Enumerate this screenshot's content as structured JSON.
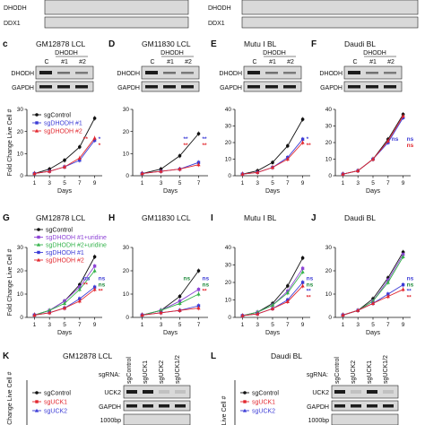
{
  "top_blots": {
    "left": {
      "labels": [
        "DHODH",
        "DDX1"
      ]
    },
    "right": {
      "labels": [
        "DHODH",
        "DDX1"
      ]
    }
  },
  "colors": {
    "control": "#111111",
    "dhodh1": "#3b3bd6",
    "dhodh2": "#e2262d",
    "dhodh1_uridine": "#8e44d6",
    "dhodh2_uridine": "#33b34a",
    "ns": "#1d8a3a"
  },
  "row1": {
    "panels": [
      {
        "letter": "c",
        "title": "GM12878 LCL",
        "blot_header": "DHODH",
        "lanes": [
          "C",
          "#1",
          "#2"
        ],
        "blot_labels": [
          "DHODH",
          "GAPDH"
        ]
      },
      {
        "letter": "D",
        "title": "GM11830 LCL",
        "blot_header": "DHODH",
        "lanes": [
          "C",
          "#1",
          "#2"
        ],
        "blot_labels": [
          "DHODH",
          "GAPDH"
        ]
      },
      {
        "letter": "E",
        "title": "Mutu I BL",
        "blot_header": "DHODH",
        "lanes": [
          "C",
          "#1",
          "#2"
        ],
        "blot_labels": [
          "DHODH",
          "GAPDH"
        ]
      },
      {
        "letter": "F",
        "title": "Daudi BL",
        "blot_header": "DHODH",
        "lanes": [
          "C",
          "#1",
          "#2"
        ],
        "blot_labels": [
          "DHODH",
          "GAPDH"
        ]
      }
    ],
    "legend": [
      "sgControl",
      "sgDHODH #1",
      "sgDHODH #2"
    ]
  },
  "row2": {
    "panels": [
      {
        "letter": "G",
        "title": "GM12878 LCL"
      },
      {
        "letter": "H",
        "title": "GM11830 LCL"
      },
      {
        "letter": "I",
        "title": "Mutu I BL"
      },
      {
        "letter": "J",
        "title": "Daudi BL"
      }
    ],
    "legend": [
      "sgControl",
      "sgDHODH #1+uridine",
      "sgDHODH #2+uridine",
      "sgDHODH #1",
      "sgDHODH #2"
    ]
  },
  "row3": {
    "panels": [
      {
        "letter": "K",
        "title": "GM12878 LCL",
        "sgrna_label": "sgRNA:",
        "lanes": [
          "sgControl",
          "sgUCK1",
          "sgUCK2",
          "sgUCK1/2"
        ],
        "blot_labels": [
          "UCK2",
          "GAPDH"
        ],
        "size_label": "1000bp"
      },
      {
        "letter": "L",
        "title": "Daudi BL",
        "sgrna_label": "sgRNA:",
        "lanes": [
          "sgControl",
          "sgUCK2",
          "sgUCK1",
          "sgUCK1/2"
        ],
        "blot_labels": [
          "UCK2",
          "GAPDH"
        ],
        "size_label": "1000bp"
      }
    ],
    "legend": [
      "sgControl",
      "sgUCK1",
      "sgUCK2"
    ]
  },
  "chart_data": [
    {
      "type": "line",
      "panel": "c",
      "xlabel": "Days",
      "ylabel": "Fold Change Live Cell #",
      "x": [
        1,
        3,
        5,
        7,
        9
      ],
      "ylim": [
        0,
        30
      ],
      "yticks": [
        0,
        10,
        20,
        30
      ],
      "series": [
        {
          "name": "sgControl",
          "values": [
            1,
            3,
            7,
            13,
            26
          ]
        },
        {
          "name": "sgDHODH #1",
          "values": [
            1,
            2,
            4,
            7,
            16
          ]
        },
        {
          "name": "sgDHODH #2",
          "values": [
            1,
            2,
            4,
            8,
            17
          ]
        }
      ],
      "annotations": [
        {
          "x": 9,
          "text": "*",
          "color": "#3b3bd6"
        },
        {
          "x": 7,
          "text": "**",
          "color": "#e2262d"
        },
        {
          "x": 9,
          "text": "*",
          "color": "#e2262d"
        }
      ]
    },
    {
      "type": "line",
      "panel": "D",
      "xlabel": "Days",
      "ylabel": "",
      "x": [
        1,
        3,
        5,
        7
      ],
      "ylim": [
        0,
        30
      ],
      "yticks": [
        0,
        10,
        20,
        30
      ],
      "series": [
        {
          "name": "sgControl",
          "values": [
            1,
            3,
            9,
            19
          ]
        },
        {
          "name": "sgDHODH #1",
          "values": [
            1,
            2,
            3,
            6
          ]
        },
        {
          "name": "sgDHODH #2",
          "values": [
            1,
            2,
            3,
            5
          ]
        }
      ],
      "annotations": [
        {
          "x": 5,
          "text": "**",
          "color": "#3b3bd6"
        },
        {
          "x": 7,
          "text": "**",
          "color": "#3b3bd6"
        },
        {
          "x": 5,
          "text": "**",
          "color": "#e2262d"
        },
        {
          "x": 7,
          "text": "**",
          "color": "#e2262d"
        }
      ]
    },
    {
      "type": "line",
      "panel": "E",
      "xlabel": "Days",
      "ylabel": "",
      "x": [
        1,
        3,
        5,
        7,
        9
      ],
      "ylim": [
        0,
        40
      ],
      "yticks": [
        0,
        10,
        20,
        30,
        40
      ],
      "series": [
        {
          "name": "sgControl",
          "values": [
            1,
            3,
            8,
            18,
            34
          ]
        },
        {
          "name": "sgDHODH #1",
          "values": [
            1,
            2,
            5,
            11,
            22
          ]
        },
        {
          "name": "sgDHODH #2",
          "values": [
            1,
            2,
            5,
            10,
            20
          ]
        }
      ],
      "annotations": [
        {
          "x": 9,
          "text": "*",
          "color": "#3b3bd6"
        },
        {
          "x": 9,
          "text": "**",
          "color": "#e2262d"
        }
      ]
    },
    {
      "type": "line",
      "panel": "F",
      "xlabel": "Days",
      "ylabel": "",
      "x": [
        1,
        3,
        5,
        7,
        9
      ],
      "ylim": [
        0,
        40
      ],
      "yticks": [
        0,
        10,
        20,
        30,
        40
      ],
      "series": [
        {
          "name": "sgControl",
          "values": [
            1,
            3,
            10,
            22,
            37
          ]
        },
        {
          "name": "sgDHODH #1",
          "values": [
            1,
            3,
            10,
            20,
            35
          ]
        },
        {
          "name": "sgDHODH #2",
          "values": [
            1,
            3,
            10,
            21,
            36
          ]
        }
      ],
      "annotations": [
        {
          "x": 7,
          "text": "ns",
          "color": "#3b3bd6"
        },
        {
          "x": 9,
          "text": "ns",
          "color": "#3b3bd6"
        },
        {
          "x": 9,
          "text": "ns",
          "color": "#e2262d"
        }
      ]
    },
    {
      "type": "line",
      "panel": "G",
      "xlabel": "Days",
      "ylabel": "Fold Change Live Cell #",
      "x": [
        1,
        3,
        5,
        7,
        9
      ],
      "ylim": [
        0,
        30
      ],
      "yticks": [
        0,
        10,
        20,
        30
      ],
      "series": [
        {
          "name": "sgControl",
          "values": [
            1,
            3,
            7,
            14,
            26
          ]
        },
        {
          "name": "sgDHODH #1+uridine",
          "values": [
            1,
            3,
            7,
            13,
            22
          ]
        },
        {
          "name": "sgDHODH #2+uridine",
          "values": [
            1,
            3,
            6,
            12,
            20
          ]
        },
        {
          "name": "sgDHODH #1",
          "values": [
            1,
            2,
            4,
            8,
            13
          ]
        },
        {
          "name": "sgDHODH #2",
          "values": [
            1,
            2,
            4,
            7,
            12
          ]
        }
      ],
      "annotations": [
        {
          "x": 7,
          "text": "ns",
          "color": "#3b3bd6"
        },
        {
          "x": 9,
          "text": "ns",
          "color": "#3b3bd6"
        },
        {
          "x": 9,
          "text": "ns",
          "color": "#1d8a3a"
        },
        {
          "x": 7,
          "text": "**",
          "color": "#e2262d"
        },
        {
          "x": 9,
          "text": "**",
          "color": "#e2262d"
        }
      ]
    },
    {
      "type": "line",
      "panel": "H",
      "xlabel": "Days",
      "ylabel": "",
      "x": [
        1,
        3,
        5,
        7
      ],
      "ylim": [
        0,
        30
      ],
      "yticks": [
        0,
        10,
        20,
        30
      ],
      "series": [
        {
          "name": "sgControl",
          "values": [
            1,
            3,
            9,
            20
          ]
        },
        {
          "name": "sgDHODH #1+uridine",
          "values": [
            1,
            3,
            7,
            12
          ]
        },
        {
          "name": "sgDHODH #2+uridine",
          "values": [
            1,
            3,
            6,
            10
          ]
        },
        {
          "name": "sgDHODH #1",
          "values": [
            1,
            2,
            3,
            5
          ]
        },
        {
          "name": "sgDHODH #2",
          "values": [
            1,
            2,
            3,
            4
          ]
        }
      ],
      "annotations": [
        {
          "x": 5,
          "text": "ns",
          "color": "#1d8a3a"
        },
        {
          "x": 7,
          "text": "ns",
          "color": "#3b3bd6"
        },
        {
          "x": 7,
          "text": "ns",
          "color": "#1d8a3a"
        },
        {
          "x": 7,
          "text": "**",
          "color": "#e2262d"
        }
      ]
    },
    {
      "type": "line",
      "panel": "I",
      "xlabel": "Days",
      "ylabel": "",
      "x": [
        1,
        3,
        5,
        7,
        9
      ],
      "ylim": [
        0,
        40
      ],
      "yticks": [
        0,
        10,
        20,
        30,
        40
      ],
      "series": [
        {
          "name": "sgControl",
          "values": [
            1,
            3,
            8,
            18,
            34
          ]
        },
        {
          "name": "sgDHODH #1+uridine",
          "values": [
            1,
            3,
            7,
            15,
            28
          ]
        },
        {
          "name": "sgDHODH #2+uridine",
          "values": [
            1,
            3,
            7,
            14,
            26
          ]
        },
        {
          "name": "sgDHODH #1",
          "values": [
            1,
            2,
            5,
            10,
            20
          ]
        },
        {
          "name": "sgDHODH #2",
          "values": [
            1,
            2,
            5,
            9,
            18
          ]
        }
      ],
      "annotations": [
        {
          "x": 9,
          "text": "ns",
          "color": "#3b3bd6"
        },
        {
          "x": 9,
          "text": "ns",
          "color": "#1d8a3a"
        },
        {
          "x": 9,
          "text": "**",
          "color": "#3b3bd6"
        },
        {
          "x": 9,
          "text": "**",
          "color": "#e2262d"
        }
      ]
    },
    {
      "type": "line",
      "panel": "J",
      "xlabel": "Days",
      "ylabel": "",
      "x": [
        1,
        3,
        5,
        7,
        9
      ],
      "ylim": [
        0,
        30
      ],
      "yticks": [
        0,
        10,
        20,
        30
      ],
      "series": [
        {
          "name": "sgControl",
          "values": [
            1,
            3,
            8,
            17,
            28
          ]
        },
        {
          "name": "sgDHODH #1+uridine",
          "values": [
            1,
            3,
            7,
            16,
            27
          ]
        },
        {
          "name": "sgDHODH #2+uridine",
          "values": [
            1,
            3,
            7,
            15,
            26
          ]
        },
        {
          "name": "sgDHODH #1",
          "values": [
            1,
            3,
            6,
            10,
            14
          ]
        },
        {
          "name": "sgDHODH #2",
          "values": [
            1,
            3,
            6,
            9,
            12
          ]
        }
      ],
      "annotations": [
        {
          "x": 9,
          "text": "ns",
          "color": "#3b3bd6"
        },
        {
          "x": 9,
          "text": "ns",
          "color": "#1d8a3a"
        },
        {
          "x": 9,
          "text": "**",
          "color": "#3b3bd6"
        },
        {
          "x": 9,
          "text": "**",
          "color": "#e2262d"
        }
      ]
    }
  ]
}
